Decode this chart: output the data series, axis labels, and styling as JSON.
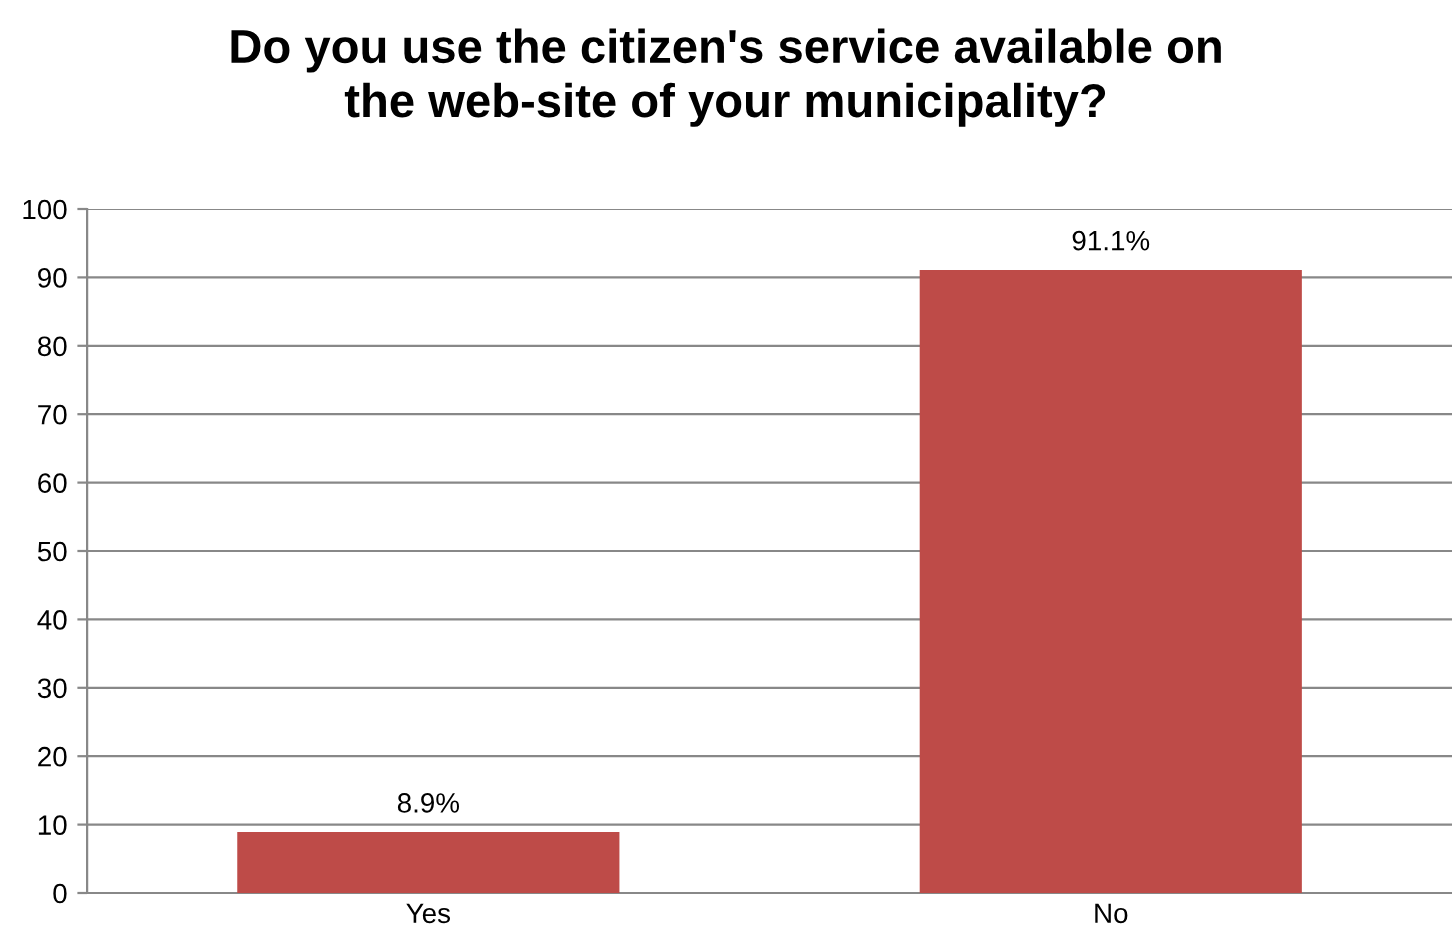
{
  "chart_data": {
    "type": "bar",
    "title": "Do you use the citizen's service available on\nthe web-site of your municipality?",
    "categories": [
      "Yes",
      "No"
    ],
    "values": [
      8.9,
      91.1
    ],
    "value_labels": [
      "8.9%",
      "91.1%"
    ],
    "color": "#be4b48",
    "ylim": [
      0,
      100
    ],
    "yticks": [
      0,
      10,
      20,
      30,
      40,
      50,
      60,
      70,
      80,
      90,
      100
    ],
    "grid": "y"
  }
}
